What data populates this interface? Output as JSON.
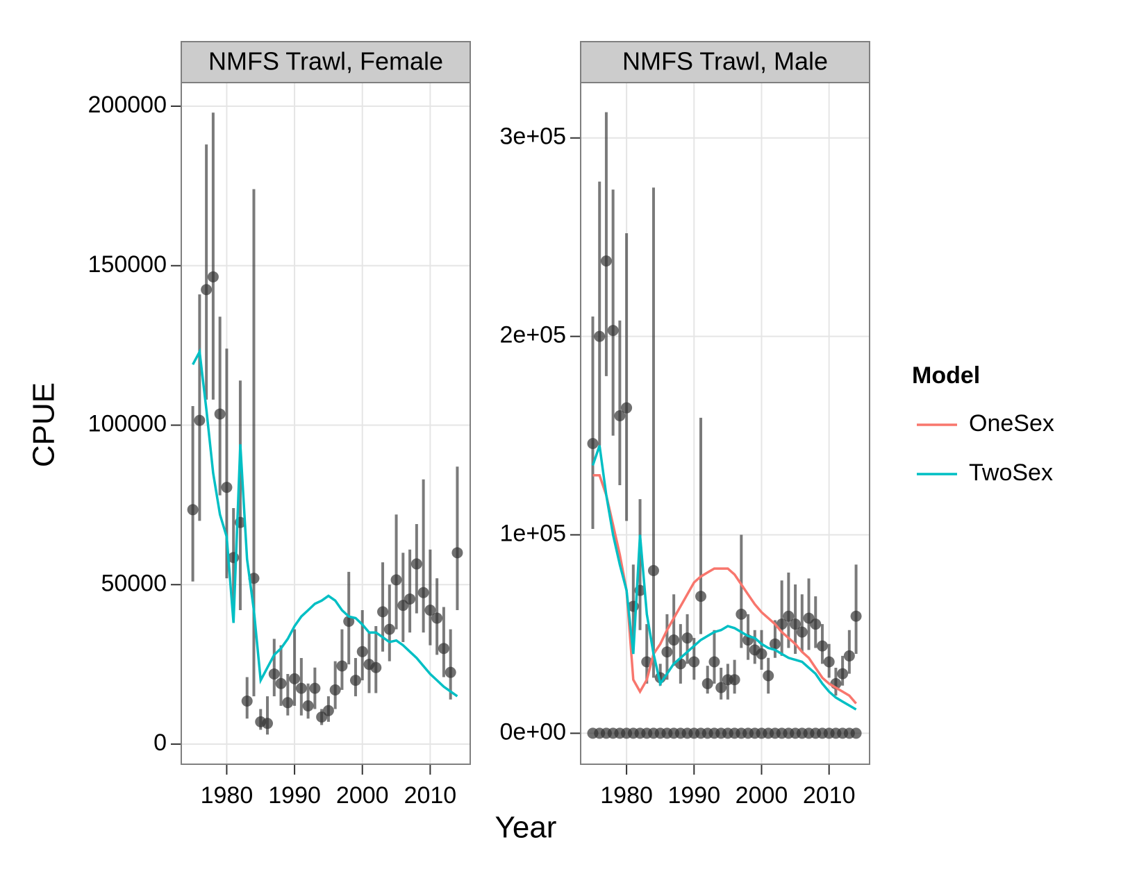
{
  "chart_data": [
    {
      "type": "line",
      "title": "NMFS Trawl, Female",
      "xlabel": "Year",
      "ylabel": "CPUE",
      "xlim": [
        1973.3,
        2015.9
      ],
      "ylim": [
        -6300,
        207400
      ],
      "xticks": [
        1980,
        1990,
        2000,
        2010
      ],
      "yticks": [
        0,
        50000,
        100000,
        150000,
        200000
      ],
      "grid": true,
      "x": [
        1975,
        1976,
        1977,
        1978,
        1979,
        1980,
        1981,
        1982,
        1983,
        1984,
        1985,
        1986,
        1987,
        1988,
        1989,
        1990,
        1991,
        1992,
        1993,
        1994,
        1995,
        1996,
        1997,
        1998,
        1999,
        2000,
        2001,
        2002,
        2003,
        2004,
        2005,
        2006,
        2007,
        2008,
        2009,
        2010,
        2011,
        2012,
        2013,
        2014
      ],
      "observations": [
        {
          "color": "#333333",
          "values": [
            73500,
            101500,
            142500,
            146500,
            103500,
            80500,
            58500,
            69500,
            13500,
            52000,
            7000,
            6500,
            22000,
            19000,
            13000,
            20500,
            17500,
            12000,
            17500,
            8500,
            10500,
            17000,
            24500,
            38500,
            20000,
            29000,
            25000,
            24000,
            41500,
            36000,
            51500,
            43500,
            45500,
            56500,
            47500,
            42000,
            39500,
            30000,
            22500,
            60000
          ],
          "lower": [
            51000,
            70000,
            108000,
            108000,
            78000,
            52000,
            43000,
            42000,
            8000,
            15000,
            4500,
            3000,
            15000,
            12000,
            9000,
            12000,
            9000,
            8000,
            11000,
            6000,
            7000,
            11000,
            17000,
            25000,
            15000,
            20000,
            16000,
            16000,
            29000,
            26000,
            36000,
            32000,
            35000,
            41000,
            35000,
            31000,
            28000,
            21000,
            14000,
            42000
          ],
          "upper": [
            106000,
            141000,
            188000,
            198000,
            134000,
            124000,
            74000,
            114000,
            21000,
            174000,
            11000,
            15000,
            33000,
            31000,
            22000,
            36000,
            27000,
            19000,
            24000,
            11000,
            15000,
            26000,
            36000,
            54000,
            27000,
            42000,
            35000,
            37000,
            57000,
            50000,
            72000,
            60000,
            61000,
            69000,
            83000,
            61000,
            52000,
            43000,
            36000,
            87000
          ]
        }
      ],
      "series": [
        {
          "name": "TwoSex",
          "color": "#00bfc4",
          "values": [
            119000,
            123000,
            105000,
            85000,
            72000,
            65000,
            38000,
            94000,
            58000,
            42000,
            20000,
            24000,
            28000,
            30000,
            33000,
            37000,
            40000,
            42000,
            44000,
            45000,
            46500,
            45000,
            42000,
            40000,
            39500,
            37500,
            35000,
            35000,
            33500,
            32000,
            32500,
            31000,
            29000,
            27000,
            24500,
            22000,
            20000,
            18000,
            16500,
            15000
          ]
        }
      ]
    },
    {
      "type": "line",
      "title": "NMFS Trawl, Male",
      "legend_title": "Model",
      "xlim": [
        1973.2,
        2016.0
      ],
      "ylim": [
        -15600,
        327900
      ],
      "xticks": [
        1980,
        1990,
        2000,
        2010
      ],
      "yticks": [
        {
          "value": 0,
          "label": "0e+00"
        },
        {
          "value": 100000,
          "label": "1e+05"
        },
        {
          "value": 200000,
          "label": "2e+05"
        },
        {
          "value": 300000,
          "label": "3e+05"
        }
      ],
      "grid": true,
      "x": [
        1975,
        1976,
        1977,
        1978,
        1979,
        1980,
        1981,
        1982,
        1983,
        1984,
        1985,
        1986,
        1987,
        1988,
        1989,
        1990,
        1991,
        1992,
        1993,
        1994,
        1995,
        1996,
        1997,
        1998,
        1999,
        2000,
        2001,
        2002,
        2003,
        2004,
        2005,
        2006,
        2007,
        2008,
        2009,
        2010,
        2011,
        2012,
        2013,
        2014
      ],
      "observations": [
        {
          "color": "#333333",
          "values": [
            146000,
            200000,
            238000,
            203000,
            160000,
            164000,
            64000,
            72000,
            36000,
            82000,
            28000,
            41000,
            47000,
            35000,
            48000,
            36000,
            69000,
            25000,
            36000,
            23000,
            27000,
            27000,
            60000,
            47000,
            42000,
            40000,
            29000,
            45000,
            55000,
            59000,
            55000,
            51000,
            58000,
            55000,
            44000,
            36000,
            25000,
            30000,
            39000,
            59000
          ],
          "lower": [
            103000,
            145000,
            180000,
            150000,
            125000,
            107000,
            45000,
            52000,
            25000,
            28000,
            24000,
            27000,
            34000,
            25000,
            35000,
            27000,
            50000,
            20000,
            25000,
            17000,
            17000,
            20000,
            43000,
            37000,
            35000,
            32000,
            20000,
            38000,
            39000,
            43000,
            40000,
            41000,
            42000,
            43000,
            35000,
            28000,
            19000,
            24000,
            30000,
            40000
          ],
          "upper": [
            210000,
            278000,
            313000,
            274000,
            208000,
            252000,
            85000,
            118000,
            55000,
            275000,
            35000,
            60000,
            70000,
            55000,
            60000,
            48000,
            159000,
            34000,
            52000,
            33000,
            35000,
            37000,
            100000,
            60000,
            52000,
            52000,
            38000,
            57000,
            77000,
            81000,
            75000,
            70000,
            78000,
            69000,
            55000,
            45000,
            33000,
            39000,
            52000,
            85000
          ]
        },
        {
          "color": "#333333",
          "values": [
            0,
            0,
            0,
            0,
            0,
            0,
            0,
            0,
            0,
            0,
            0,
            0,
            0,
            0,
            0,
            0,
            0,
            0,
            0,
            0,
            0,
            0,
            0,
            0,
            0,
            0,
            0,
            0,
            0,
            0,
            0,
            0,
            0,
            0,
            0,
            0,
            0,
            0,
            0,
            0
          ]
        }
      ],
      "series": [
        {
          "name": "OneSex",
          "color": "#f8766d",
          "values": [
            130000,
            130000,
            120000,
            105000,
            90000,
            72000,
            27000,
            21000,
            27000,
            40000,
            45000,
            52000,
            58000,
            64000,
            70000,
            76000,
            79000,
            81000,
            83000,
            83000,
            83000,
            80000,
            75000,
            70000,
            65000,
            61000,
            58000,
            55000,
            51000,
            48000,
            45000,
            41000,
            38000,
            33000,
            28000,
            25000,
            23000,
            21000,
            19000,
            15000
          ]
        },
        {
          "name": "TwoSex",
          "color": "#00bfc4",
          "values": [
            135000,
            145000,
            120000,
            100000,
            85000,
            72000,
            40000,
            100000,
            60000,
            40000,
            25000,
            30000,
            35000,
            38000,
            41000,
            44000,
            47000,
            49000,
            51000,
            52000,
            54000,
            53000,
            51000,
            49000,
            48000,
            45000,
            43000,
            42000,
            40000,
            38000,
            37000,
            36000,
            33000,
            30000,
            25000,
            21000,
            18000,
            16000,
            14000,
            12000
          ]
        }
      ]
    }
  ]
}
